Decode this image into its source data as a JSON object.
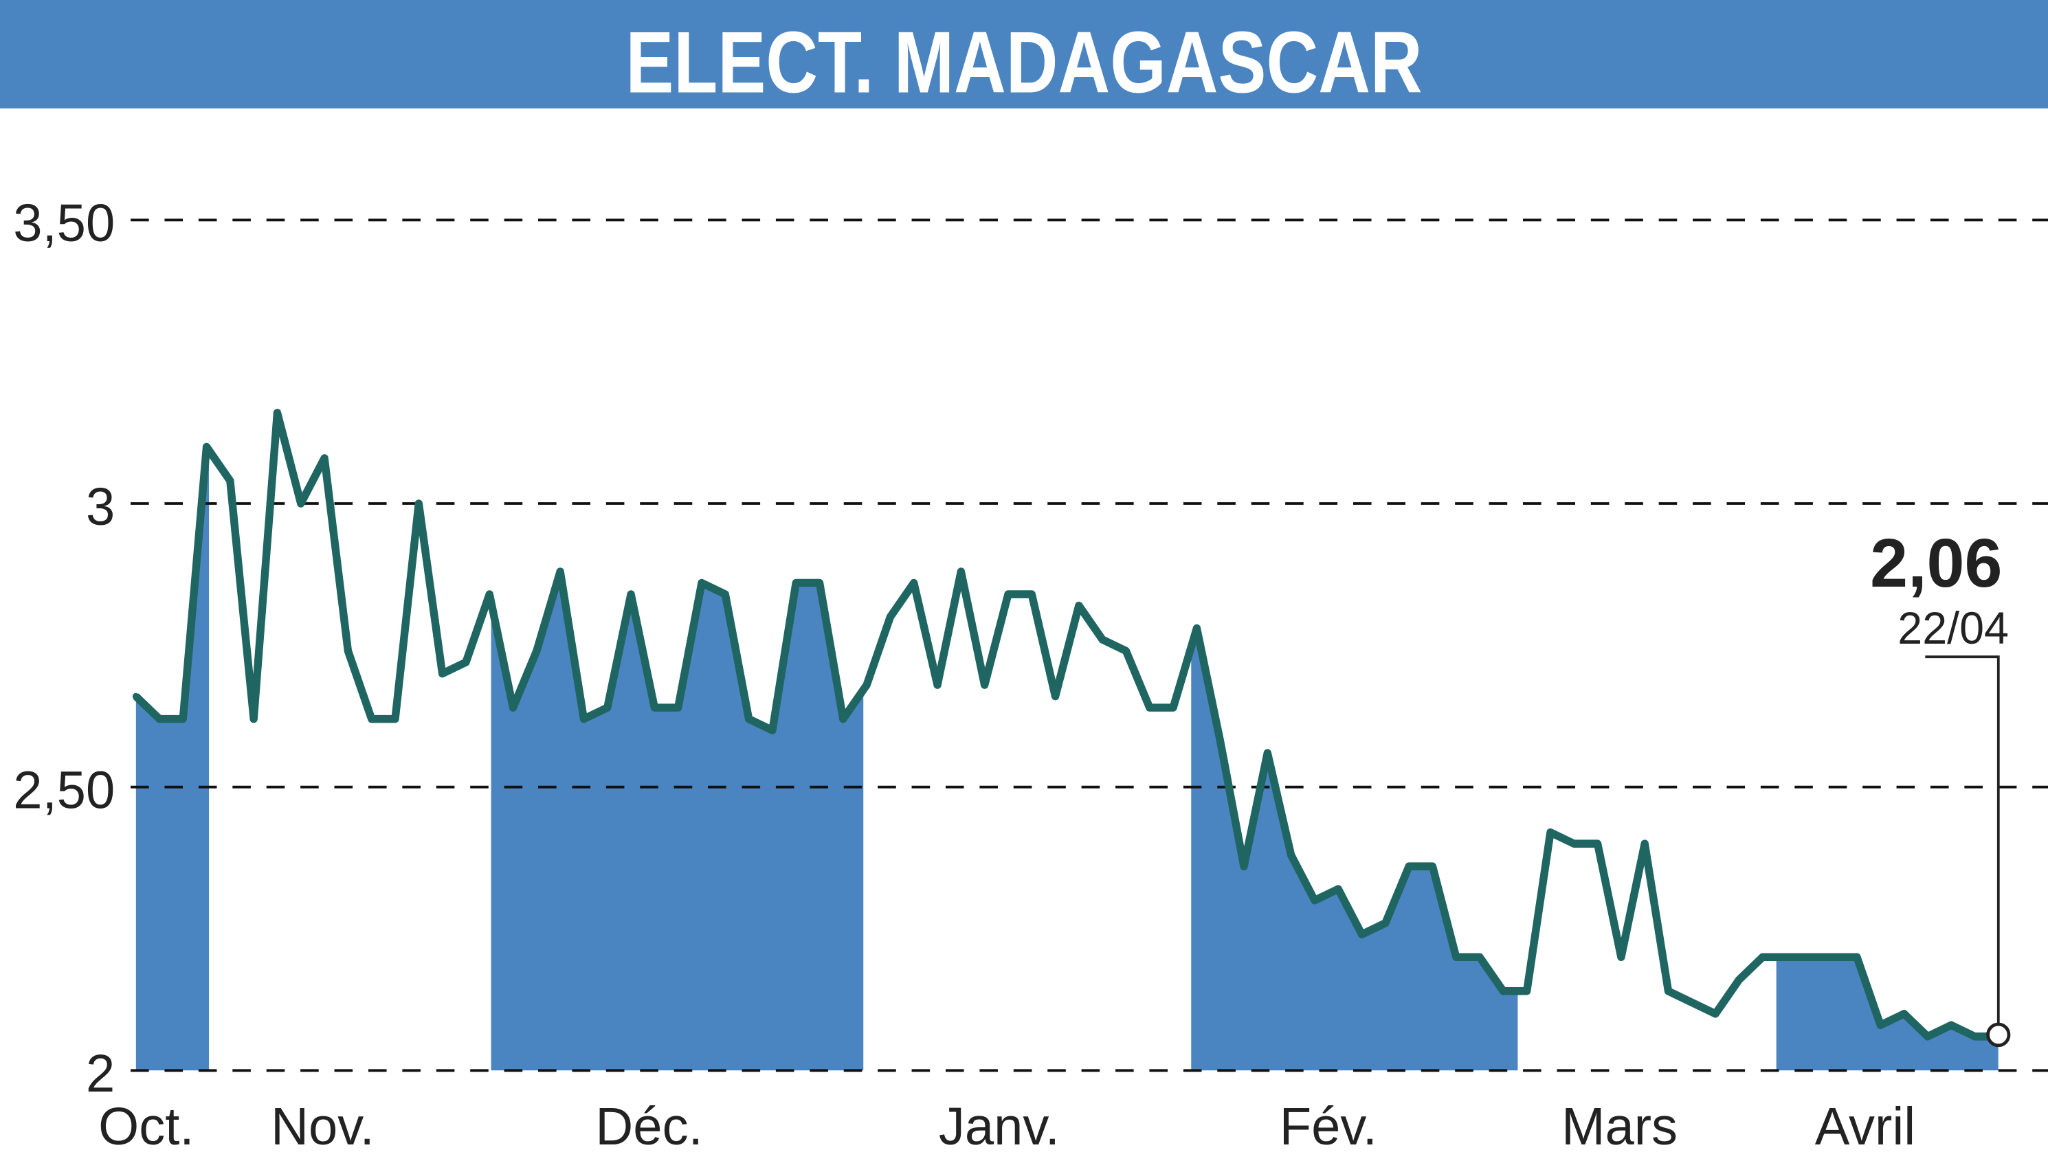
{
  "colors": {
    "header": "#4a85c1",
    "band": "#4a85c1",
    "line": "#1f6662",
    "grid": "#111111"
  },
  "chart_data": {
    "type": "line",
    "title": "ELECT. MADAGASCAR",
    "xlabel": "",
    "ylabel": "",
    "ylim": [
      2,
      3.6
    ],
    "y_ticks": [
      {
        "value": 3.5,
        "label": "3,50"
      },
      {
        "value": 3,
        "label": "3"
      },
      {
        "value": 2.5,
        "label": "2,50"
      },
      {
        "value": 2,
        "label": "2"
      }
    ],
    "grid": "horizontal dashed",
    "x_month_labels": [
      "Oct.",
      "Nov.",
      "Déc.",
      "Janv.",
      "Fév.",
      "Mars",
      "Avril"
    ],
    "values": [
      2.66,
      2.62,
      2.62,
      3.1,
      3.04,
      2.62,
      3.16,
      3.0,
      3.08,
      2.74,
      2.62,
      2.62,
      3.0,
      2.7,
      2.72,
      2.84,
      2.64,
      2.74,
      2.88,
      2.62,
      2.64,
      2.84,
      2.64,
      2.64,
      2.86,
      2.84,
      2.62,
      2.6,
      2.86,
      2.86,
      2.62,
      2.68,
      2.8,
      2.86,
      2.68,
      2.88,
      2.68,
      2.84,
      2.84,
      2.66,
      2.82,
      2.76,
      2.74,
      2.64,
      2.64,
      2.78,
      2.58,
      2.36,
      2.56,
      2.38,
      2.3,
      2.32,
      2.24,
      2.26,
      2.36,
      2.36,
      2.2,
      2.2,
      2.14,
      2.14,
      2.42,
      2.4,
      2.4,
      2.2,
      2.4,
      2.14,
      2.12,
      2.1,
      2.16,
      2.2,
      2.2,
      2.2,
      2.2,
      2.2,
      2.08,
      2.1,
      2.06,
      2.08,
      2.06,
      2.06
    ],
    "last_value": {
      "label": "2,06",
      "date": "22/04"
    }
  }
}
